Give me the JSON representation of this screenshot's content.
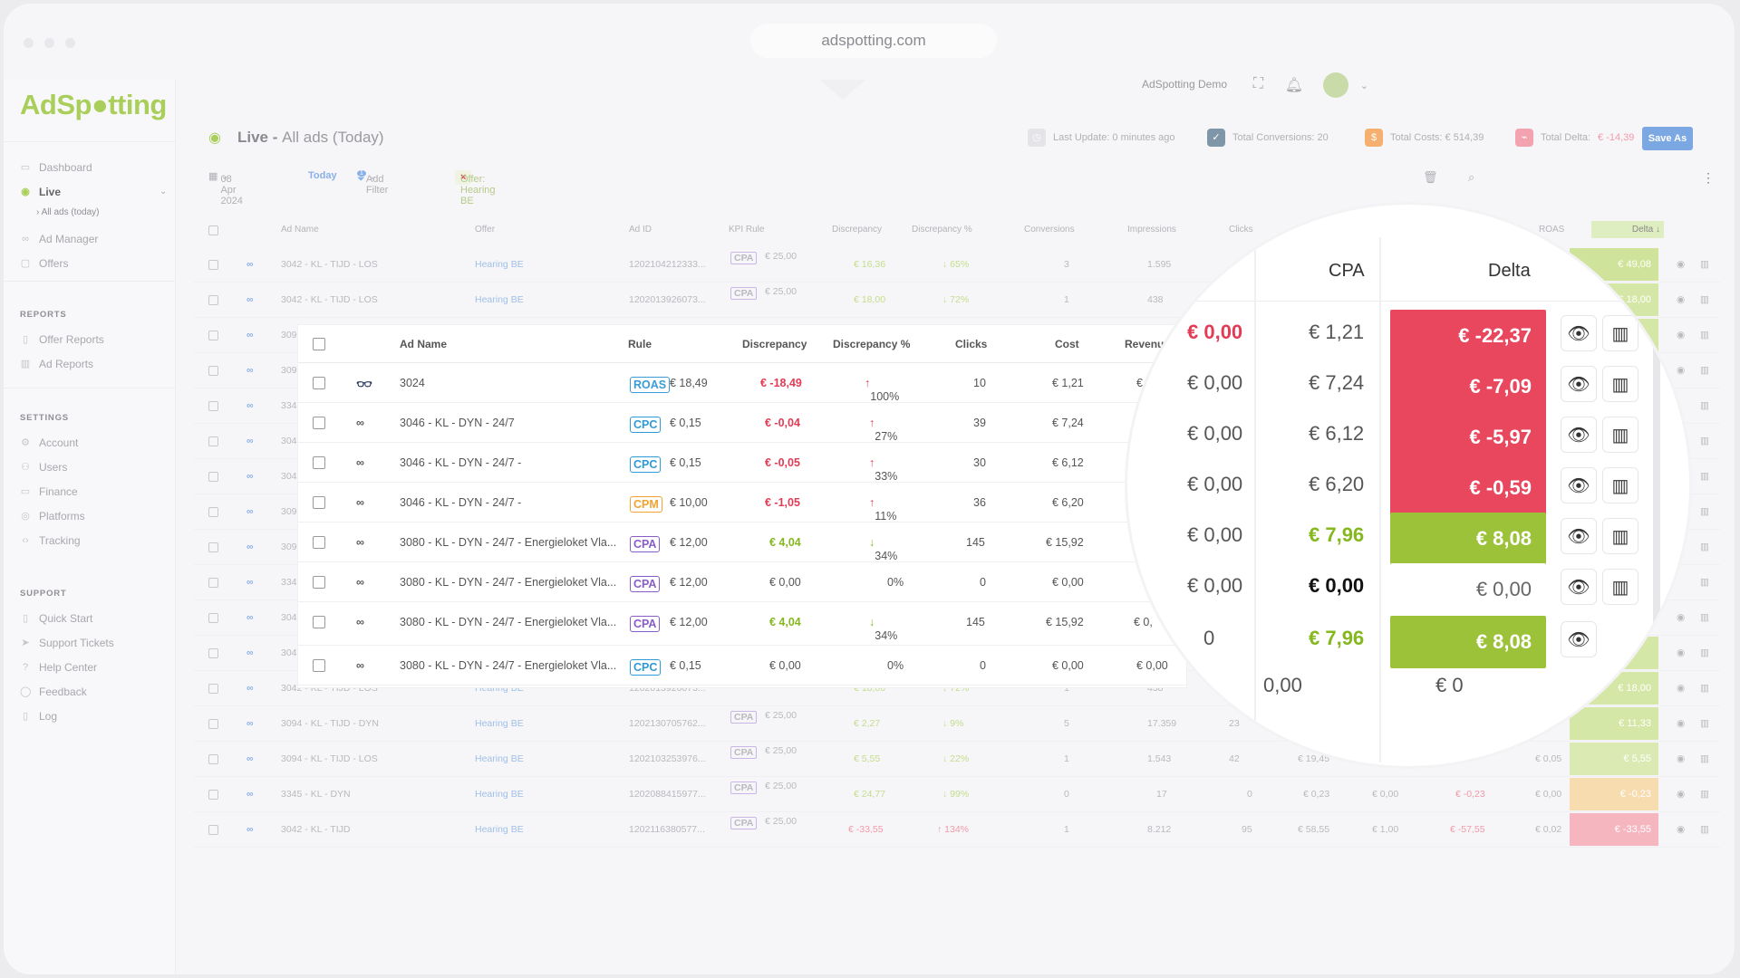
{
  "browser": {
    "url": "adspotting.com"
  },
  "logo": {
    "text_a": "Ad",
    "text_b": "Sp",
    "text_c": "tting"
  },
  "sidebar": {
    "nav": [
      {
        "label": "Dashboard",
        "icon": "monitor-icon"
      },
      {
        "label": "Live",
        "icon": "eye-icon",
        "active": true
      },
      {
        "label": "Ad Manager",
        "icon": "link-icon"
      },
      {
        "label": "Offers",
        "icon": "folder-icon"
      }
    ],
    "live_sub": "All ads (today)",
    "reports_head": "REPORTS",
    "reports": [
      {
        "label": "Offer Reports"
      },
      {
        "label": "Ad Reports"
      }
    ],
    "settings_head": "SETTINGS",
    "settings": [
      {
        "label": "Account"
      },
      {
        "label": "Users"
      },
      {
        "label": "Finance"
      },
      {
        "label": "Platforms"
      },
      {
        "label": "Tracking"
      }
    ],
    "support_head": "SUPPORT",
    "support": [
      {
        "label": "Quick Start"
      },
      {
        "label": "Support Tickets"
      },
      {
        "label": "Help Center"
      },
      {
        "label": "Feedback"
      },
      {
        "label": "Log"
      }
    ]
  },
  "topbar": {
    "user": "AdSpotting Demo",
    "notif_count": "0"
  },
  "header": {
    "title_a": "Live - ",
    "title_b": "All ads (Today)",
    "last_update": "Last Update: 0 minutes ago",
    "total_conversions": "Total Conversions: 20",
    "total_costs": "Total Costs: € 514,39",
    "total_delta_label": "Total Delta: ",
    "total_delta_value": "€ -14,39",
    "save_as": "Save As"
  },
  "filters": {
    "date": "08 Apr 2024",
    "today": "Today",
    "add_filter": "Add Filter",
    "filter_badge": "1",
    "offer_chip": "Offer: Hearing BE"
  },
  "bg_table": {
    "headers": [
      "Ad Name",
      "Offer",
      "Ad ID",
      "KPI Rule",
      "Discrepancy",
      "Discrepancy %",
      "Conversions",
      "Impressions",
      "Clicks",
      "ROAS",
      "Delta ↓"
    ],
    "rows": [
      {
        "name": "3042 - KL - TIJD - LOS",
        "offer": "Hearing BE",
        "id": "1202104212333...",
        "kpi": "€ 25,00",
        "disc": "€ 16,36",
        "disc_pct": "↓ 65%",
        "conv": "3",
        "impr": "1.595",
        "delta": "€ 49,08",
        "delta_color": "#cfe39a"
      },
      {
        "name": "3042 - KL - TIJD - LOS",
        "offer": "Hearing BE",
        "id": "1202013926073...",
        "kpi": "€ 25,00",
        "disc": "€ 18,00",
        "disc_pct": "↓ 72%",
        "conv": "1",
        "impr": "438",
        "delta": "€ 18,00",
        "delta_color": "#d5e7a6"
      },
      {
        "name": "3042 - KL - TIJD - LOS",
        "offer": "Hearing BE",
        "id": "1202013926073...",
        "kpi": "",
        "disc": "€ 18,00",
        "disc_pct": "↓ 72%",
        "conv": "1",
        "impr": "438",
        "delta": "€ 18,00",
        "delta_color": "#d5e7a6"
      },
      {
        "name": "3094 - KL - TIJD - DYN",
        "offer": "Hearing BE",
        "id": "1202130705762...",
        "kpi": "€ 25,00",
        "disc": "€ 2,27",
        "disc_pct": "↓ 9%",
        "conv": "5",
        "impr": "17.359",
        "clicks": "23",
        "delta": "€ 11,33",
        "delta_color": "#d5e7a6"
      },
      {
        "name": "3094 - KL - TIJD - LOS",
        "offer": "Hearing BE",
        "id": "1202103253976...",
        "kpi": "€ 25,00",
        "disc": "€ 5,55",
        "disc_pct": "↓ 22%",
        "conv": "1",
        "impr": "1.543",
        "clicks": "42",
        "cost": "€ 19,45",
        "roas": "€ 0,05",
        "delta": "€ 5,55",
        "delta_color": "#dbeab3"
      },
      {
        "name": "3345 - KL - DYN",
        "offer": "Hearing BE",
        "id": "1202088415977...",
        "kpi": "€ 25,00",
        "disc": "€ 24,77",
        "disc_pct": "↓ 99%",
        "conv": "0",
        "impr": "17",
        "clicks": "0",
        "cost": "€ 0,23",
        "rev": "€ 0,00",
        "profit": "€ -0,23",
        "roas": "€ 0,00",
        "delta": "€ -0,23",
        "delta_color": "#f7dcb0"
      },
      {
        "name": "3042 - KL - TIJD",
        "offer": "Hearing BE",
        "id": "1202116380577...",
        "kpi": "€ 25,00",
        "disc": "€ -33,55",
        "disc_pct": "↑ 134%",
        "conv": "1",
        "impr": "8.212",
        "clicks": "95",
        "cost": "€ 58,55",
        "rev": "€ 1,00",
        "profit": "€ -57,55",
        "roas": "€ 0,02",
        "delta": "€ -33,55",
        "delta_color": "#f6b6c0"
      }
    ],
    "partial_names": [
      "309",
      "309",
      "334",
      "304",
      "304",
      "309",
      "309",
      "334",
      "304",
      "304"
    ]
  },
  "overlay": {
    "headers": [
      "Ad Name",
      "Rule",
      "Discrepancy",
      "Discrepancy %",
      "Clicks",
      "Cost",
      "Revenu"
    ],
    "rows": [
      {
        "platform": "other",
        "name": "3024",
        "rule": "ROAS",
        "rule_val": "€ 18,49",
        "disc": "€ -18,49",
        "disc_cls": "neg",
        "pct": "100%",
        "dir": "up",
        "clicks": "10",
        "cost": "€ 1,21",
        "rev": "€"
      },
      {
        "platform": "meta",
        "name": "3046 - KL - DYN - 24/7",
        "rule": "CPC",
        "rule_val": "€ 0,15",
        "disc": "€ -0,04",
        "disc_cls": "neg",
        "pct": "27%",
        "dir": "up",
        "clicks": "39",
        "cost": "€ 7,24",
        "rev": ""
      },
      {
        "platform": "meta",
        "name": "3046 - KL - DYN - 24/7 -",
        "rule": "CPC",
        "rule_val": "€ 0,15",
        "disc": "€ -0,05",
        "disc_cls": "neg",
        "pct": "33%",
        "dir": "up",
        "clicks": "30",
        "cost": "€ 6,12",
        "rev": ""
      },
      {
        "platform": "meta",
        "name": "3046 - KL - DYN - 24/7 -",
        "rule": "CPM",
        "rule_val": "€ 10,00",
        "disc": "€ -1,05",
        "disc_cls": "neg",
        "pct": "11%",
        "dir": "up",
        "clicks": "36",
        "cost": "€ 6,20",
        "rev": ""
      },
      {
        "platform": "meta",
        "name": "3080 - KL - DYN - 24/7 - Energieloket Vla...",
        "rule": "CPA",
        "rule_val": "€ 12,00",
        "disc": "€ 4,04",
        "disc_cls": "pos",
        "pct": "34%",
        "dir": "down",
        "clicks": "145",
        "cost": "€ 15,92",
        "rev": ""
      },
      {
        "platform": "meta",
        "name": "3080 - KL - DYN - 24/7 - Energieloket Vla...",
        "rule": "CPA",
        "rule_val": "€ 12,00",
        "disc": "€ 0,00",
        "disc_cls": "",
        "pct": "0%",
        "dir": "",
        "clicks": "0",
        "cost": "€ 0,00",
        "rev": ""
      },
      {
        "platform": "meta",
        "name": "3080 - KL - DYN - 24/7 - Energieloket Vla...",
        "rule": "CPA",
        "rule_val": "€ 12,00",
        "disc": "€ 4,04",
        "disc_cls": "pos",
        "pct": "34%",
        "dir": "down",
        "clicks": "145",
        "cost": "€ 15,92",
        "rev": "€ 0,"
      },
      {
        "platform": "meta",
        "name": "3080 - KL - DYN - 24/7 - Energieloket Vla...",
        "rule": "CPC",
        "rule_val": "€ 0,15",
        "disc": "€ 0,00",
        "disc_cls": "",
        "pct": "0%",
        "dir": "",
        "clicks": "0",
        "cost": "€ 0,00",
        "rev": "€ 0,00"
      }
    ]
  },
  "magnifier": {
    "headers": {
      "cpa": "CPA",
      "delta": "Delta"
    },
    "rows": [
      {
        "left": "€ 0,00",
        "left_cls": "neg",
        "cpa": "€ 1,21",
        "cpa_cls": "",
        "delta": "€ -22,37",
        "color": "#e8475e"
      },
      {
        "left": "€ 0,00",
        "left_cls": "",
        "cpa": "€ 7,24",
        "cpa_cls": "",
        "delta": "€ -7,09",
        "color": "#e8475e"
      },
      {
        "left": "€ 0,00",
        "left_cls": "",
        "cpa": "€ 6,12",
        "cpa_cls": "",
        "delta": "€ -5,97",
        "color": "#e8475e"
      },
      {
        "left": "€ 0,00",
        "left_cls": "",
        "cpa": "€ 6,20",
        "cpa_cls": "",
        "delta": "€ -0,59",
        "color": "#e8475e"
      },
      {
        "left": "€ 0,00",
        "left_cls": "",
        "cpa": "€ 7,96",
        "cpa_cls": "pos",
        "delta": "€ 8,08",
        "color": "#9cc23a"
      },
      {
        "left": "€ 0,00",
        "left_cls": "",
        "cpa": "€ 0,00",
        "cpa_cls": "bold",
        "delta": "€ 0,00",
        "color": "#ffffff"
      },
      {
        "left": "0",
        "left_cls": "",
        "cpa": "€ 7,96",
        "cpa_cls": "pos",
        "delta": "€ 8,08",
        "color": "#9cc23a"
      }
    ],
    "bottom_left": "0,00",
    "bottom_delta": "€ 0"
  },
  "colors": {
    "accent": "#a9cf5a",
    "danger": "#e8475e",
    "success": "#9cc23a",
    "meta": "#1a66d6"
  }
}
